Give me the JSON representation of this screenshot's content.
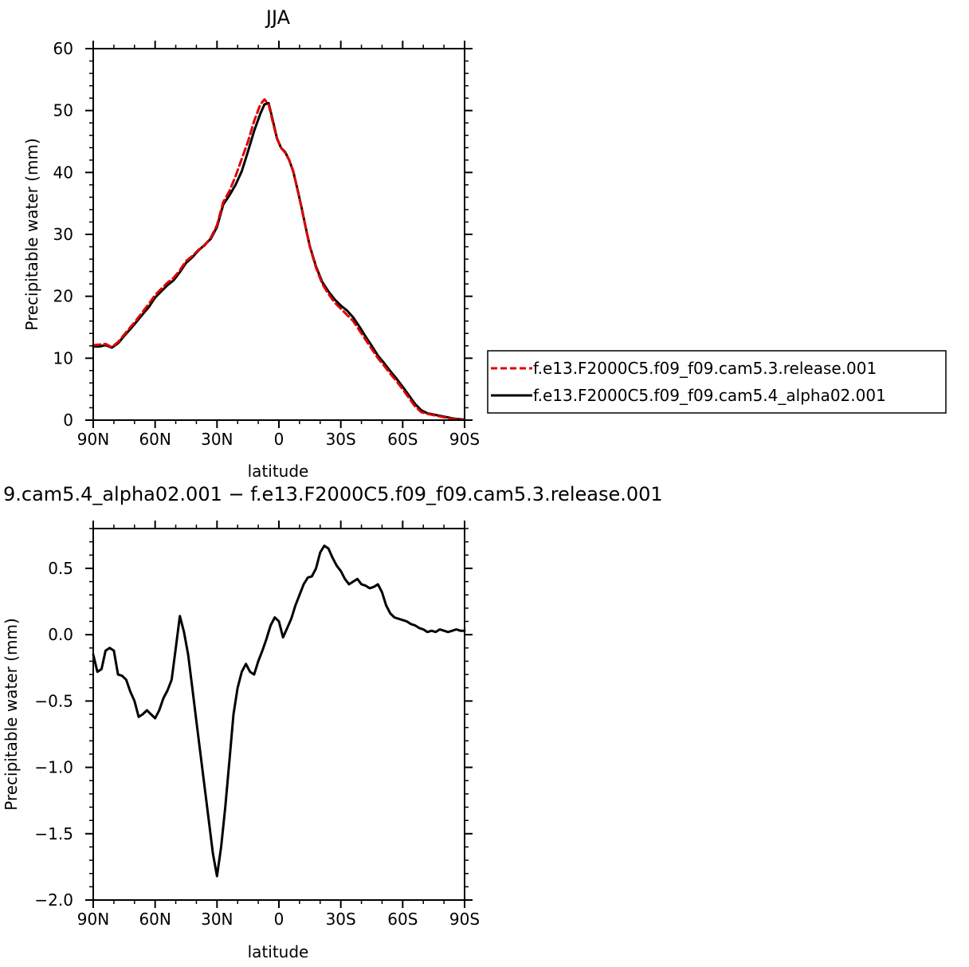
{
  "chart_data": [
    {
      "type": "line",
      "title": "JJA",
      "xlabel": "latitude",
      "ylabel": "Precipitable water (mm)",
      "xlim": [
        90,
        -90
      ],
      "ylim": [
        0,
        60
      ],
      "xtick_values": [
        90,
        60,
        30,
        0,
        -30,
        -60,
        -90
      ],
      "xtick_labels": [
        "90N",
        "60N",
        "30N",
        "0",
        "30S",
        "60S",
        "90S"
      ],
      "ytick_values": [
        0,
        10,
        20,
        30,
        40,
        50,
        60
      ],
      "ytick_labels": [
        "0",
        "10",
        "20",
        "30",
        "40",
        "50",
        "60"
      ],
      "legend_position": "right",
      "series": [
        {
          "name": "f.e13.F2000C5.f09_f09.cam5.3.release.001",
          "color": "#e00000",
          "dash": "dashed",
          "points": [
            [
              90,
              12.1
            ],
            [
              87,
              12.2
            ],
            [
              84,
              12.3
            ],
            [
              81,
              11.8
            ],
            [
              78,
              12.6
            ],
            [
              75,
              13.8
            ],
            [
              72,
              15.0
            ],
            [
              69,
              16.2
            ],
            [
              66,
              17.5
            ],
            [
              63,
              18.8
            ],
            [
              60,
              20.2
            ],
            [
              57,
              21.2
            ],
            [
              54,
              22.2
            ],
            [
              51,
              23.0
            ],
            [
              48,
              24.2
            ],
            [
              45,
              25.7
            ],
            [
              42,
              26.5
            ],
            [
              39,
              27.5
            ],
            [
              36,
              28.2
            ],
            [
              33,
              29.5
            ],
            [
              30,
              31.5
            ],
            [
              27,
              35.2
            ],
            [
              24,
              37.0
            ],
            [
              21,
              39.4
            ],
            [
              18,
              42.2
            ],
            [
              15,
              45.0
            ],
            [
              12,
              48.3
            ],
            [
              9,
              51.0
            ],
            [
              7,
              51.8
            ],
            [
              5,
              51.0
            ],
            [
              3,
              48.2
            ],
            [
              1,
              45.5
            ],
            [
              -1,
              44.0
            ],
            [
              -3,
              43.2
            ],
            [
              -5,
              42.0
            ],
            [
              -7,
              40.2
            ],
            [
              -9,
              37.2
            ],
            [
              -11,
              34.2
            ],
            [
              -13,
              31.0
            ],
            [
              -15,
              28.0
            ],
            [
              -18,
              24.6
            ],
            [
              -21,
              22.0
            ],
            [
              -24,
              20.4
            ],
            [
              -27,
              19.0
            ],
            [
              -30,
              18.0
            ],
            [
              -33,
              17.0
            ],
            [
              -36,
              16.0
            ],
            [
              -39,
              14.5
            ],
            [
              -42,
              13.0
            ],
            [
              -45,
              11.5
            ],
            [
              -48,
              10.0
            ],
            [
              -51,
              8.8
            ],
            [
              -54,
              7.5
            ],
            [
              -57,
              6.3
            ],
            [
              -60,
              5.0
            ],
            [
              -63,
              3.6
            ],
            [
              -66,
              2.2
            ],
            [
              -69,
              1.3
            ],
            [
              -72,
              1.0
            ],
            [
              -75,
              0.8
            ],
            [
              -78,
              0.6
            ],
            [
              -81,
              0.4
            ],
            [
              -84,
              0.2
            ],
            [
              -87,
              0.1
            ],
            [
              -90,
              0.05
            ]
          ]
        },
        {
          "name": "f.e13.F2000C5.f09_f09.cam5.4_alpha02.001",
          "color": "#000000",
          "dash": "solid",
          "points": [
            [
              90,
              11.9
            ],
            [
              87,
              11.9
            ],
            [
              84,
              12.1
            ],
            [
              81,
              11.7
            ],
            [
              78,
              12.4
            ],
            [
              75,
              13.6
            ],
            [
              72,
              14.7
            ],
            [
              69,
              15.9
            ],
            [
              66,
              17.1
            ],
            [
              63,
              18.3
            ],
            [
              60,
              19.8
            ],
            [
              57,
              20.8
            ],
            [
              54,
              21.8
            ],
            [
              51,
              22.6
            ],
            [
              48,
              23.9
            ],
            [
              45,
              25.4
            ],
            [
              42,
              26.3
            ],
            [
              39,
              27.4
            ],
            [
              36,
              28.3
            ],
            [
              33,
              29.3
            ],
            [
              30,
              31.2
            ],
            [
              27,
              34.8
            ],
            [
              24,
              36.3
            ],
            [
              21,
              38.0
            ],
            [
              18,
              40.2
            ],
            [
              15,
              43.4
            ],
            [
              12,
              46.7
            ],
            [
              9,
              49.5
            ],
            [
              7,
              51.0
            ],
            [
              5,
              51.2
            ],
            [
              3,
              48.5
            ],
            [
              1,
              45.6
            ],
            [
              -1,
              44.0
            ],
            [
              -3,
              43.3
            ],
            [
              -5,
              42.0
            ],
            [
              -7,
              40.1
            ],
            [
              -9,
              37.3
            ],
            [
              -11,
              34.3
            ],
            [
              -13,
              31.1
            ],
            [
              -15,
              28.1
            ],
            [
              -18,
              24.8
            ],
            [
              -21,
              22.3
            ],
            [
              -24,
              20.8
            ],
            [
              -27,
              19.5
            ],
            [
              -30,
              18.5
            ],
            [
              -33,
              17.7
            ],
            [
              -36,
              16.6
            ],
            [
              -39,
              15.1
            ],
            [
              -42,
              13.5
            ],
            [
              -45,
              12.0
            ],
            [
              -48,
              10.4
            ],
            [
              -51,
              9.2
            ],
            [
              -54,
              7.9
            ],
            [
              -57,
              6.7
            ],
            [
              -60,
              5.4
            ],
            [
              -63,
              4.0
            ],
            [
              -66,
              2.6
            ],
            [
              -69,
              1.6
            ],
            [
              -72,
              1.1
            ],
            [
              -75,
              0.9
            ],
            [
              -78,
              0.7
            ],
            [
              -81,
              0.5
            ],
            [
              -84,
              0.3
            ],
            [
              -87,
              0.15
            ],
            [
              -90,
              0.1
            ]
          ]
        }
      ]
    },
    {
      "type": "line",
      "title": "9.cam5.4_alpha02.001 − f.e13.F2000C5.f09_f09.cam5.3.release.001",
      "xlabel": "latitude",
      "ylabel": "Precipitable water (mm)",
      "xlim": [
        90,
        -90
      ],
      "ylim": [
        -2.0,
        0.8
      ],
      "xtick_values": [
        90,
        60,
        30,
        0,
        -30,
        -60,
        -90
      ],
      "xtick_labels": [
        "90N",
        "60N",
        "30N",
        "0",
        "30S",
        "60S",
        "90S"
      ],
      "ytick_values": [
        -2.0,
        -1.5,
        -1.0,
        -0.5,
        0.0,
        0.5
      ],
      "ytick_labels": [
        "−2.0",
        "−1.5",
        "−1.0",
        "−0.5",
        "0.0",
        "0.5"
      ],
      "series": [
        {
          "color": "#000000",
          "dash": "solid",
          "points": [
            [
              90,
              -0.15
            ],
            [
              88,
              -0.28
            ],
            [
              86,
              -0.26
            ],
            [
              84,
              -0.12
            ],
            [
              82,
              -0.1
            ],
            [
              80,
              -0.12
            ],
            [
              78,
              -0.3
            ],
            [
              76,
              -0.31
            ],
            [
              74,
              -0.34
            ],
            [
              72,
              -0.43
            ],
            [
              70,
              -0.5
            ],
            [
              68,
              -0.62
            ],
            [
              66,
              -0.6
            ],
            [
              64,
              -0.57
            ],
            [
              62,
              -0.6
            ],
            [
              60,
              -0.63
            ],
            [
              58,
              -0.57
            ],
            [
              56,
              -0.48
            ],
            [
              54,
              -0.42
            ],
            [
              52,
              -0.34
            ],
            [
              50,
              -0.1
            ],
            [
              48,
              0.14
            ],
            [
              46,
              0.02
            ],
            [
              44,
              -0.15
            ],
            [
              42,
              -0.4
            ],
            [
              40,
              -0.65
            ],
            [
              38,
              -0.9
            ],
            [
              36,
              -1.15
            ],
            [
              34,
              -1.4
            ],
            [
              32,
              -1.65
            ],
            [
              30,
              -1.82
            ],
            [
              28,
              -1.6
            ],
            [
              26,
              -1.3
            ],
            [
              24,
              -0.95
            ],
            [
              22,
              -0.6
            ],
            [
              20,
              -0.4
            ],
            [
              18,
              -0.28
            ],
            [
              16,
              -0.22
            ],
            [
              14,
              -0.28
            ],
            [
              12,
              -0.3
            ],
            [
              10,
              -0.2
            ],
            [
              8,
              -0.12
            ],
            [
              6,
              -0.03
            ],
            [
              4,
              0.07
            ],
            [
              2,
              0.13
            ],
            [
              0,
              0.1
            ],
            [
              -2,
              -0.02
            ],
            [
              -4,
              0.05
            ],
            [
              -6,
              0.12
            ],
            [
              -8,
              0.22
            ],
            [
              -10,
              0.3
            ],
            [
              -12,
              0.38
            ],
            [
              -14,
              0.43
            ],
            [
              -16,
              0.44
            ],
            [
              -18,
              0.5
            ],
            [
              -20,
              0.62
            ],
            [
              -22,
              0.67
            ],
            [
              -24,
              0.65
            ],
            [
              -26,
              0.58
            ],
            [
              -28,
              0.52
            ],
            [
              -30,
              0.48
            ],
            [
              -32,
              0.42
            ],
            [
              -34,
              0.38
            ],
            [
              -36,
              0.4
            ],
            [
              -38,
              0.42
            ],
            [
              -40,
              0.38
            ],
            [
              -42,
              0.37
            ],
            [
              -44,
              0.35
            ],
            [
              -46,
              0.36
            ],
            [
              -48,
              0.38
            ],
            [
              -50,
              0.32
            ],
            [
              -52,
              0.22
            ],
            [
              -54,
              0.16
            ],
            [
              -56,
              0.13
            ],
            [
              -58,
              0.12
            ],
            [
              -60,
              0.11
            ],
            [
              -62,
              0.1
            ],
            [
              -64,
              0.08
            ],
            [
              -66,
              0.07
            ],
            [
              -68,
              0.05
            ],
            [
              -70,
              0.04
            ],
            [
              -72,
              0.02
            ],
            [
              -74,
              0.03
            ],
            [
              -76,
              0.02
            ],
            [
              -78,
              0.04
            ],
            [
              -80,
              0.03
            ],
            [
              -82,
              0.02
            ],
            [
              -84,
              0.03
            ],
            [
              -86,
              0.04
            ],
            [
              -88,
              0.03
            ],
            [
              -90,
              0.03
            ]
          ]
        }
      ]
    }
  ]
}
